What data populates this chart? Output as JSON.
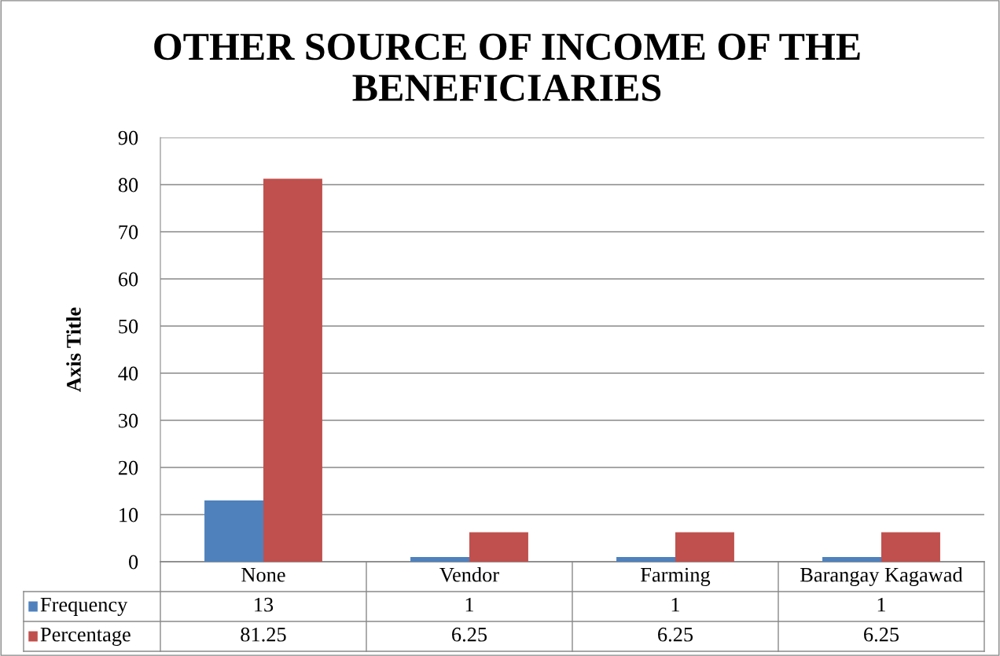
{
  "chart_data": {
    "type": "bar",
    "title": "OTHER SOURCE OF INCOME OF THE BENEFICIARIES",
    "ylabel": "Axis Title",
    "categories": [
      "None",
      "Vendor",
      "Farming",
      "Barangay Kagawad"
    ],
    "series": [
      {
        "name": "Frequency",
        "color": "#4f81bd",
        "values": [
          13,
          1,
          1,
          1
        ]
      },
      {
        "name": "Percentage",
        "color": "#c0504d",
        "values": [
          81.25,
          6.25,
          6.25,
          6.25
        ]
      }
    ],
    "ylim": [
      0,
      90
    ],
    "yticks": [
      0,
      10,
      20,
      30,
      40,
      50,
      60,
      70,
      80,
      90
    ],
    "grid": "y",
    "data_labels": true,
    "legend": "bottom"
  }
}
